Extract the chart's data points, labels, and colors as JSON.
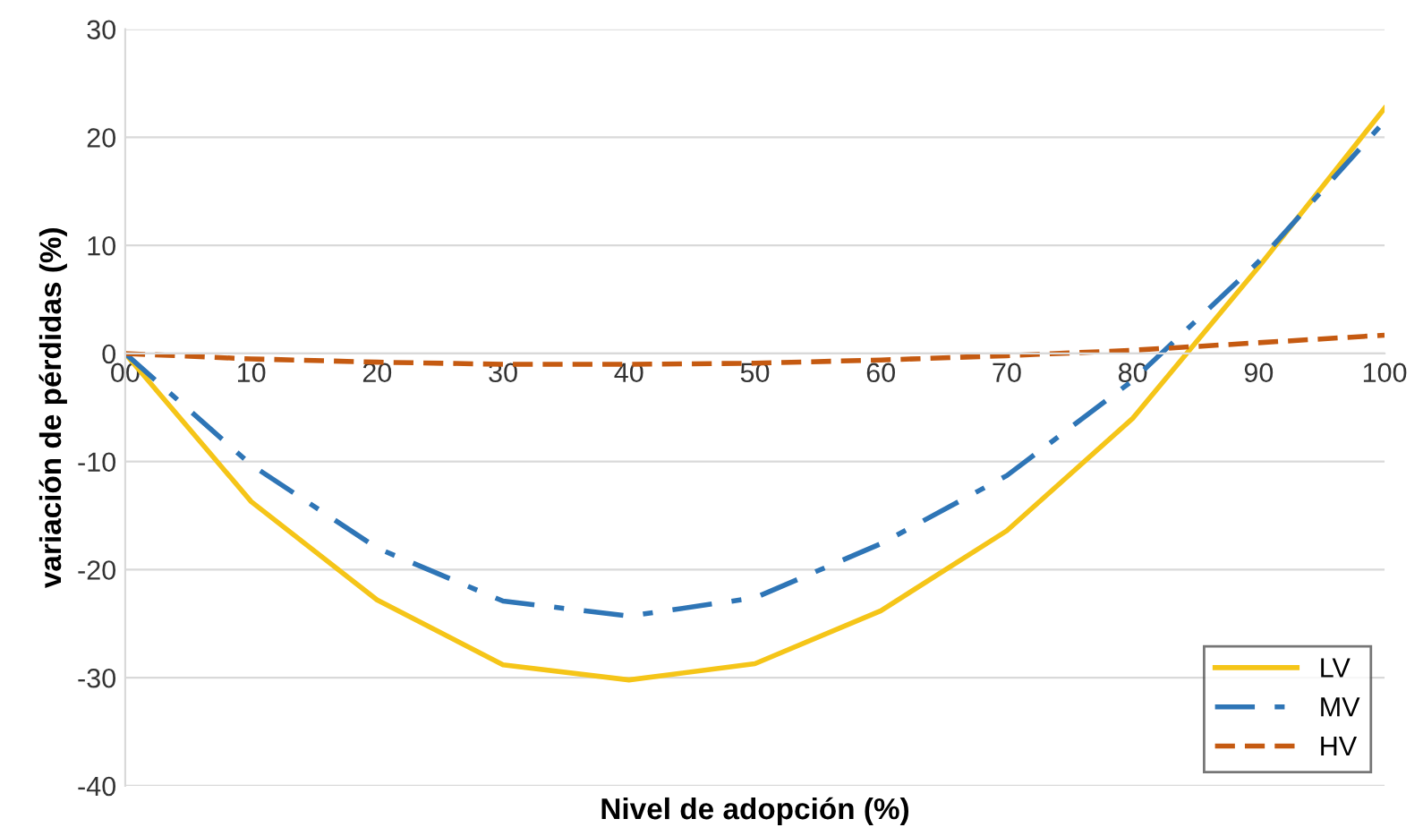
{
  "chart_data": {
    "type": "line",
    "xlabel": "Nivel de adopción (%)",
    "ylabel": "variación de pérdidas (%)",
    "x": [
      0,
      10,
      20,
      30,
      40,
      50,
      60,
      70,
      80,
      90,
      100
    ],
    "series": [
      {
        "name": "LV",
        "color": "#f5c518",
        "line_style": "solid",
        "values": [
          0,
          -13.7,
          -22.8,
          -28.8,
          -30.2,
          -28.7,
          -23.8,
          -16.4,
          -6,
          8,
          22.7
        ]
      },
      {
        "name": "MV",
        "color": "#2e75b6",
        "line_style": "dashdot",
        "values": [
          0,
          -10.3,
          -18,
          -22.9,
          -24.3,
          -22.6,
          -17.6,
          -11.3,
          -2.5,
          8.5,
          21.5
        ]
      },
      {
        "name": "HV",
        "color": "#c55a11",
        "line_style": "dashed",
        "values": [
          0,
          -0.5,
          -0.8,
          -1,
          -1,
          -0.9,
          -0.6,
          -0.2,
          0.3,
          1,
          1.7
        ]
      }
    ],
    "xlim": [
      0,
      100
    ],
    "ylim": [
      -40,
      30
    ],
    "xticks": [
      {
        "value": 0,
        "label": "00"
      },
      10,
      20,
      30,
      40,
      50,
      60,
      70,
      80,
      90,
      100
    ],
    "yticks": [
      -40,
      -30,
      -20,
      -10,
      0,
      10,
      20,
      30
    ],
    "grid": "y",
    "legend": "bottom right",
    "marker": "none"
  }
}
